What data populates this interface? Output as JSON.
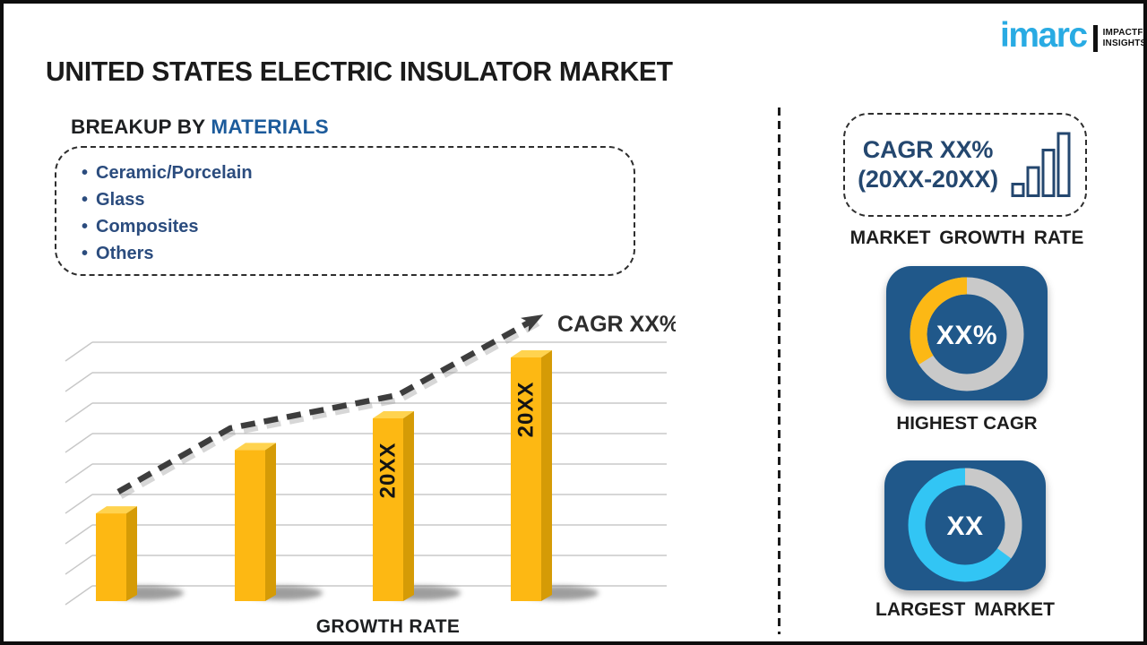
{
  "page": {
    "title": "UNITED STATES ELECTRIC INSULATOR MARKET"
  },
  "logo": {
    "brand": "imarc",
    "tagline": [
      "IMPACTFUL",
      "INSIGHTS"
    ]
  },
  "breakup": {
    "heading_prefix": "BREAKUP BY",
    "heading_accent": "MATERIALS",
    "items": [
      "Ceramic/Porcelain",
      "Glass",
      "Composites",
      "Others"
    ]
  },
  "chart_data": {
    "type": "bar",
    "categories": [
      "",
      "",
      "20XX",
      "20XX"
    ],
    "values": [
      36,
      62,
      75,
      100
    ],
    "value_unit": "relative-height-percent-of-tallest-bar",
    "title": "",
    "xlabel": "GROWTH RATE",
    "ylabel": "",
    "grid": true,
    "gridlines": 9,
    "trend_label": "CAGR XX%",
    "trend_style": "dashed-rising-arrow",
    "bar_color": "#fdb813",
    "bar_top_color": "#ffd34f",
    "bar_side_color": "#d59b06"
  },
  "right_panel": {
    "cagr_box": {
      "line1": "CAGR XX%",
      "line2": "(20XX-20XX)"
    },
    "growth_rate_label": "MARKET GROWTH RATE",
    "highest_cagr": {
      "value": "XX%",
      "label": "HIGHEST CAGR",
      "segment_color": "#fcb815",
      "base_color": "#c9c9c9",
      "fraction": 0.34,
      "direction": "ccw"
    },
    "largest_market": {
      "value": "XX",
      "label": "LARGEST MARKET",
      "segment_color": "#c9c9c9",
      "base_color": "#32c5f4",
      "fraction": 0.35,
      "direction": "cw"
    }
  },
  "colors": {
    "accent_blue": "#1c5b9b",
    "navy_text": "#2b4c7e",
    "card_blue": "#20588a",
    "bar_yellow": "#fdb813",
    "logo_cyan": "#29abe3"
  }
}
